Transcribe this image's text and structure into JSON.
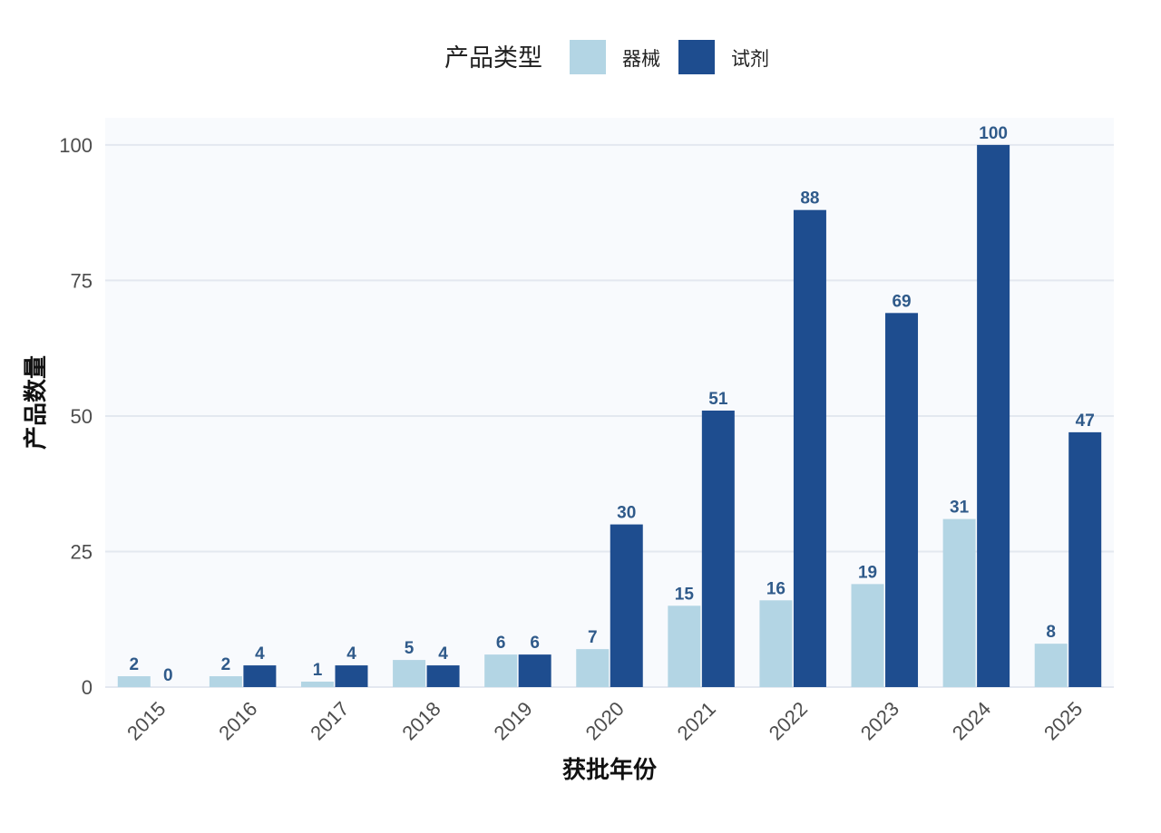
{
  "chart_data": {
    "type": "bar",
    "title": "",
    "xlabel": "获批年份",
    "ylabel": "产品数量",
    "categories": [
      "2015",
      "2016",
      "2017",
      "2018",
      "2019",
      "2020",
      "2021",
      "2022",
      "2023",
      "2024",
      "2025"
    ],
    "series": [
      {
        "name": "器械",
        "color": "#b3d5e4",
        "values": [
          2,
          2,
          1,
          5,
          6,
          7,
          15,
          16,
          19,
          31,
          8
        ]
      },
      {
        "name": "试剂",
        "color": "#1e4d8f",
        "values": [
          0,
          4,
          4,
          4,
          6,
          30,
          51,
          88,
          69,
          100,
          47
        ]
      }
    ],
    "ylim": [
      0,
      105
    ],
    "yticks": [
      0,
      25,
      50,
      75,
      100
    ],
    "grid": true,
    "legend": {
      "title": "产品类型",
      "position": "top"
    },
    "data_labels": true,
    "data_label_color": "#2f5a8a",
    "panel_background": "#f8fafd",
    "gridline_color": "#e3e8f0"
  }
}
